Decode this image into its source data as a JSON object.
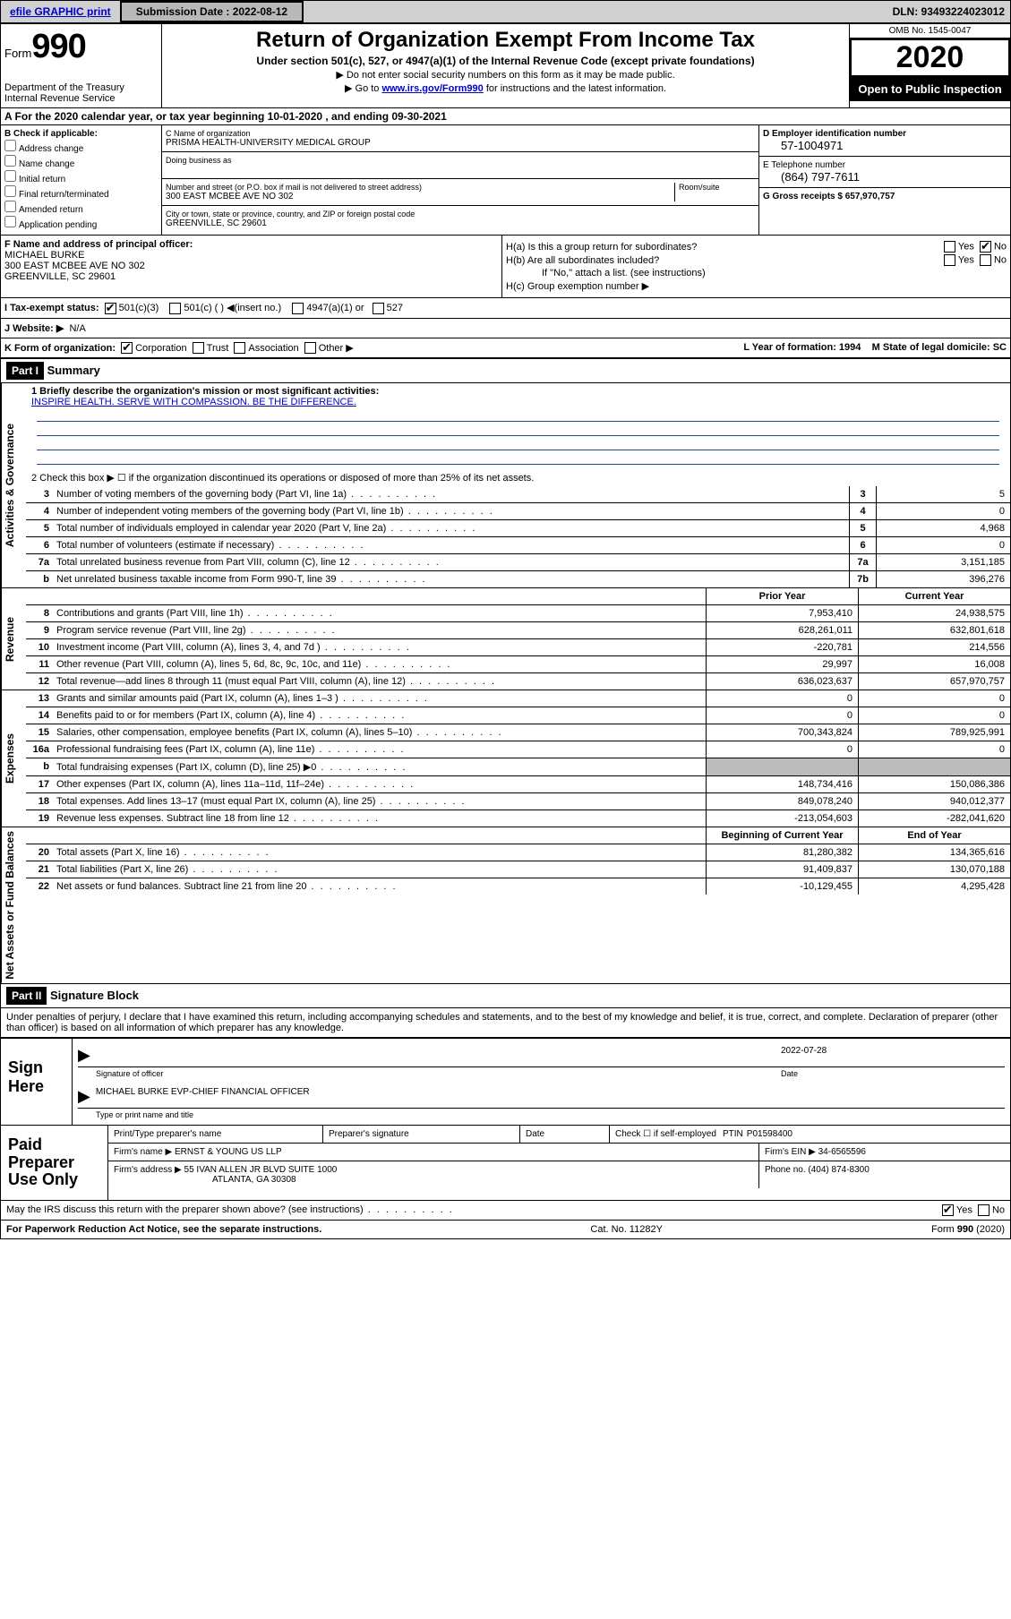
{
  "topbar": {
    "efile": "efile GRAPHIC print",
    "submission_label": "Submission Date : 2022-08-12",
    "dln": "DLN: 93493224023012"
  },
  "header": {
    "form_word": "Form",
    "form_num": "990",
    "dept": "Department of the Treasury\nInternal Revenue Service",
    "title": "Return of Organization Exempt From Income Tax",
    "subtitle": "Under section 501(c), 527, or 4947(a)(1) of the Internal Revenue Code (except private foundations)",
    "arrow1": "▶ Do not enter social security numbers on this form as it may be made public.",
    "arrow2_pre": "▶ Go to ",
    "arrow2_link": "www.irs.gov/Form990",
    "arrow2_post": " for instructions and the latest information.",
    "omb": "OMB No. 1545-0047",
    "year": "2020",
    "open": "Open to Public Inspection"
  },
  "period": "A For the 2020 calendar year, or tax year beginning 10-01-2020   , and ending 09-30-2021",
  "blockB": {
    "label": "B Check if applicable:",
    "opts": [
      "Address change",
      "Name change",
      "Initial return",
      "Final return/terminated",
      "Amended return",
      "Application pending"
    ]
  },
  "org": {
    "c_label": "C Name of organization",
    "name": "PRISMA HEALTH-UNIVERSITY MEDICAL GROUP",
    "dba_label": "Doing business as",
    "addr_label": "Number and street (or P.O. box if mail is not delivered to street address)",
    "room_label": "Room/suite",
    "addr": "300 EAST MCBEE AVE NO 302",
    "city_label": "City or town, state or province, country, and ZIP or foreign postal code",
    "city": "GREENVILLE, SC  29601"
  },
  "idcol": {
    "ein_label": "D Employer identification number",
    "ein": "57-1004971",
    "tel_label": "E Telephone number",
    "tel": "(864) 797-7611",
    "gross_label": "G Gross receipts $ 657,970,757"
  },
  "blockF": {
    "f_label": "F  Name and address of principal officer:",
    "name": "MICHAEL BURKE",
    "addr1": "300 EAST MCBEE AVE NO 302",
    "addr2": "GREENVILLE, SC  29601"
  },
  "blockH": {
    "ha": "H(a)  Is this a group return for subordinates?",
    "hb": "H(b)  Are all subordinates included?",
    "hnote": "If \"No,\" attach a list. (see instructions)",
    "hc": "H(c)  Group exemption number ▶"
  },
  "tax": {
    "label": "I   Tax-exempt status:",
    "c501c3": "501(c)(3)",
    "c501c": "501(c) (  ) ◀(insert no.)",
    "c4947": "4947(a)(1) or",
    "c527": "527"
  },
  "website": {
    "label": "J   Website: ▶",
    "val": "N/A"
  },
  "krow": {
    "k": "K Form of organization:",
    "opts": [
      "Corporation",
      "Trust",
      "Association",
      "Other ▶"
    ],
    "l": "L Year of formation: 1994",
    "m": "M State of legal domicile: SC"
  },
  "part1": {
    "hdr": "Part I",
    "title": "Summary",
    "mission_label": "1  Briefly describe the organization's mission or most significant activities:",
    "mission": "INSPIRE HEALTH. SERVE WITH COMPASSION. BE THE DIFFERENCE.",
    "line2": "2    Check this box ▶ ☐  if the organization discontinued its operations or disposed of more than 25% of its net assets.",
    "rows_top": [
      {
        "n": "3",
        "d": "Number of voting members of the governing body (Part VI, line 1a)",
        "b": "3",
        "v": "5"
      },
      {
        "n": "4",
        "d": "Number of independent voting members of the governing body (Part VI, line 1b)",
        "b": "4",
        "v": "0"
      },
      {
        "n": "5",
        "d": "Total number of individuals employed in calendar year 2020 (Part V, line 2a)",
        "b": "5",
        "v": "4,968"
      },
      {
        "n": "6",
        "d": "Total number of volunteers (estimate if necessary)",
        "b": "6",
        "v": "0"
      },
      {
        "n": "7a",
        "d": "Total unrelated business revenue from Part VIII, column (C), line 12",
        "b": "7a",
        "v": "3,151,185"
      },
      {
        "n": "b",
        "d": "Net unrelated business taxable income from Form 990-T, line 39",
        "b": "7b",
        "v": "396,276"
      }
    ],
    "hdr_prior": "Prior Year",
    "hdr_current": "Current Year",
    "revenue": [
      {
        "n": "8",
        "d": "Contributions and grants (Part VIII, line 1h)",
        "p": "7,953,410",
        "c": "24,938,575"
      },
      {
        "n": "9",
        "d": "Program service revenue (Part VIII, line 2g)",
        "p": "628,261,011",
        "c": "632,801,618"
      },
      {
        "n": "10",
        "d": "Investment income (Part VIII, column (A), lines 3, 4, and 7d )",
        "p": "-220,781",
        "c": "214,556"
      },
      {
        "n": "11",
        "d": "Other revenue (Part VIII, column (A), lines 5, 6d, 8c, 9c, 10c, and 11e)",
        "p": "29,997",
        "c": "16,008"
      },
      {
        "n": "12",
        "d": "Total revenue—add lines 8 through 11 (must equal Part VIII, column (A), line 12)",
        "p": "636,023,637",
        "c": "657,970,757"
      }
    ],
    "expenses": [
      {
        "n": "13",
        "d": "Grants and similar amounts paid (Part IX, column (A), lines 1–3 )",
        "p": "0",
        "c": "0"
      },
      {
        "n": "14",
        "d": "Benefits paid to or for members (Part IX, column (A), line 4)",
        "p": "0",
        "c": "0"
      },
      {
        "n": "15",
        "d": "Salaries, other compensation, employee benefits (Part IX, column (A), lines 5–10)",
        "p": "700,343,824",
        "c": "789,925,991"
      },
      {
        "n": "16a",
        "d": "Professional fundraising fees (Part IX, column (A), line 11e)",
        "p": "0",
        "c": "0"
      },
      {
        "n": "b",
        "d": "Total fundraising expenses (Part IX, column (D), line 25) ▶0",
        "p": "",
        "c": "",
        "grey": true
      },
      {
        "n": "17",
        "d": "Other expenses (Part IX, column (A), lines 11a–11d, 11f–24e)",
        "p": "148,734,416",
        "c": "150,086,386"
      },
      {
        "n": "18",
        "d": "Total expenses. Add lines 13–17 (must equal Part IX, column (A), line 25)",
        "p": "849,078,240",
        "c": "940,012,377"
      },
      {
        "n": "19",
        "d": "Revenue less expenses. Subtract line 18 from line 12",
        "p": "-213,054,603",
        "c": "-282,041,620"
      }
    ],
    "hdr_begin": "Beginning of Current Year",
    "hdr_end": "End of Year",
    "netassets": [
      {
        "n": "20",
        "d": "Total assets (Part X, line 16)",
        "p": "81,280,382",
        "c": "134,365,616"
      },
      {
        "n": "21",
        "d": "Total liabilities (Part X, line 26)",
        "p": "91,409,837",
        "c": "130,070,188"
      },
      {
        "n": "22",
        "d": "Net assets or fund balances. Subtract line 21 from line 20",
        "p": "-10,129,455",
        "c": "4,295,428"
      }
    ],
    "vtab_ag": "Activities & Governance",
    "vtab_rev": "Revenue",
    "vtab_exp": "Expenses",
    "vtab_net": "Net Assets or Fund Balances"
  },
  "part2": {
    "hdr": "Part II",
    "title": "Signature Block",
    "perjury": "Under penalties of perjury, I declare that I have examined this return, including accompanying schedules and statements, and to the best of my knowledge and belief, it is true, correct, and complete. Declaration of preparer (other than officer) is based on all information of which preparer has any knowledge."
  },
  "sign": {
    "label": "Sign Here",
    "sig_label": "Signature of officer",
    "date": "2022-07-28",
    "date_label": "Date",
    "name": "MICHAEL BURKE  EVP-CHIEF FINANCIAL OFFICER",
    "name_label": "Type or print name and title"
  },
  "paid": {
    "label": "Paid Preparer Use Only",
    "h1": "Print/Type preparer's name",
    "h2": "Preparer's signature",
    "h3": "Date",
    "h4a": "Check ☐ if self-employed",
    "h4b": "PTIN",
    "ptin": "P01598400",
    "firm_label": "Firm's name      ▶",
    "firm": "ERNST & YOUNG US LLP",
    "ein_label": "Firm's EIN ▶",
    "ein": "34-6565596",
    "addr_label": "Firm's address ▶",
    "addr1": "55 IVAN ALLEN JR BLVD SUITE 1000",
    "addr2": "ATLANTA, GA  30308",
    "phone_label": "Phone no.",
    "phone": "(404) 874-8300"
  },
  "footer": {
    "discuss": "May the IRS discuss this return with the preparer shown above? (see instructions)",
    "yes": "Yes",
    "no": "No",
    "pra": "For Paperwork Reduction Act Notice, see the separate instructions.",
    "cat": "Cat. No. 11282Y",
    "form": "Form 990 (2020)"
  }
}
